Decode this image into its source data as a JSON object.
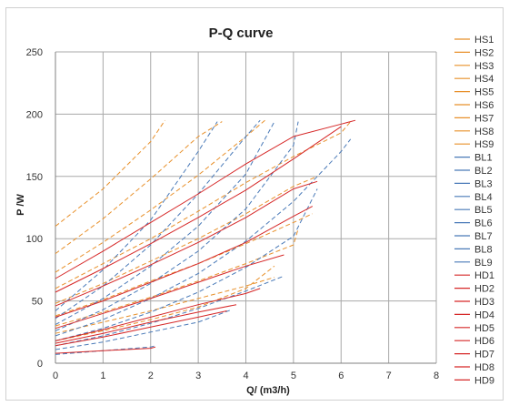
{
  "chart_data": {
    "type": "line",
    "title": "P-Q  curve",
    "xlabel": "Q/ (m3/h)",
    "ylabel": "P /W",
    "xlim": [
      0,
      8
    ],
    "ylim": [
      0,
      250
    ],
    "xticks": [
      "0",
      "1",
      "2",
      "3",
      "4",
      "5",
      "6",
      "7",
      "8"
    ],
    "yticks": [
      "0",
      "50",
      "100",
      "150",
      "200",
      "250"
    ],
    "grid": true,
    "legend_position": "right",
    "colors": {
      "HS": "#e8902a",
      "BL": "#4a7ab8",
      "HD": "#d62828",
      "grid": "#a8a8a8",
      "axis": "#808080"
    },
    "series": [
      {
        "name": "HS1",
        "group": "HS",
        "x": [
          0,
          1,
          2,
          2.3
        ],
        "y": [
          110,
          140,
          178,
          195
        ]
      },
      {
        "name": "HS2",
        "group": "HS",
        "x": [
          0,
          1,
          2,
          3,
          3.5
        ],
        "y": [
          88,
          116,
          148,
          182,
          194
        ]
      },
      {
        "name": "HS3",
        "group": "HS",
        "x": [
          0,
          1,
          2,
          3,
          4,
          4.4
        ],
        "y": [
          73,
          97,
          123,
          151,
          182,
          195
        ]
      },
      {
        "name": "HS4",
        "group": "HS",
        "x": [
          0,
          1,
          2,
          3,
          4,
          5,
          6,
          6.2
        ],
        "y": [
          60,
          80,
          100,
          122,
          145,
          166,
          185,
          194
        ]
      },
      {
        "name": "HS5",
        "group": "HS",
        "x": [
          0,
          1,
          2,
          3,
          4,
          5,
          5.5
        ],
        "y": [
          48,
          64,
          82,
          100,
          120,
          142,
          150
        ]
      },
      {
        "name": "HS6",
        "group": "HS",
        "x": [
          0,
          1,
          2,
          3,
          4,
          5,
          5.4
        ],
        "y": [
          38,
          51,
          66,
          80,
          96,
          113,
          120
        ]
      },
      {
        "name": "HS7",
        "group": "HS",
        "x": [
          0,
          1,
          2,
          3,
          4,
          5,
          5.1
        ],
        "y": [
          30,
          41,
          53,
          66,
          80,
          95,
          108
        ]
      },
      {
        "name": "HS8",
        "group": "HS",
        "x": [
          0,
          1,
          2,
          3,
          4,
          4.6
        ],
        "y": [
          24,
          33,
          42,
          52,
          62,
          69
        ]
      },
      {
        "name": "HS9",
        "group": "HS",
        "x": [
          0,
          1,
          2,
          3,
          4,
          4.6
        ],
        "y": [
          18,
          26,
          35,
          45,
          60,
          78
        ]
      },
      {
        "name": "BL1",
        "group": "BL",
        "x": [
          0,
          1,
          2,
          3,
          3.4
        ],
        "y": [
          42,
          75,
          115,
          170,
          194
        ]
      },
      {
        "name": "BL2",
        "group": "BL",
        "x": [
          0,
          1,
          2,
          3,
          4,
          4.3
        ],
        "y": [
          36,
          62,
          95,
          136,
          182,
          195
        ]
      },
      {
        "name": "BL3",
        "group": "BL",
        "x": [
          0,
          1,
          2,
          3,
          4,
          4.6
        ],
        "y": [
          31,
          52,
          78,
          110,
          152,
          194
        ]
      },
      {
        "name": "BL4",
        "group": "BL",
        "x": [
          0,
          1,
          2,
          3,
          4,
          5,
          5.1
        ],
        "y": [
          26,
          43,
          64,
          90,
          124,
          175,
          194
        ]
      },
      {
        "name": "BL5",
        "group": "BL",
        "x": [
          0,
          1,
          2,
          3,
          4,
          5,
          6,
          6.2
        ],
        "y": [
          22,
          35,
          52,
          72,
          98,
          130,
          170,
          180
        ]
      },
      {
        "name": "BL6",
        "group": "BL",
        "x": [
          0,
          1,
          2,
          3,
          4,
          5,
          5.5
        ],
        "y": [
          18,
          28,
          41,
          57,
          77,
          102,
          140
        ]
      },
      {
        "name": "BL7",
        "group": "BL",
        "x": [
          0,
          1,
          2,
          3,
          4,
          4.8
        ],
        "y": [
          14,
          22,
          32,
          44,
          58,
          70
        ]
      },
      {
        "name": "BL8",
        "group": "BL",
        "x": [
          0,
          1,
          2,
          3,
          3.7
        ],
        "y": [
          11,
          17,
          25,
          33,
          43
        ]
      },
      {
        "name": "BL9",
        "group": "BL",
        "x": [
          0,
          1,
          2,
          2.1
        ],
        "y": [
          7,
          10,
          13,
          14
        ]
      },
      {
        "name": "HD1",
        "group": "HD",
        "x": [
          0,
          1,
          2,
          3,
          4,
          5,
          6,
          6.3
        ],
        "y": [
          68,
          90,
          113,
          136,
          160,
          182,
          192,
          195
        ]
      },
      {
        "name": "HD2",
        "group": "HD",
        "x": [
          0,
          1,
          2,
          3,
          4,
          5,
          6
        ],
        "y": [
          57,
          76,
          96,
          117,
          139,
          164,
          190
        ]
      },
      {
        "name": "HD3",
        "group": "HD",
        "x": [
          0,
          1,
          2,
          3,
          4,
          5,
          5.5
        ],
        "y": [
          46,
          62,
          79,
          97,
          117,
          140,
          146
        ]
      },
      {
        "name": "HD4",
        "group": "HD",
        "x": [
          0,
          1,
          2,
          3,
          4,
          5,
          5.4
        ],
        "y": [
          37,
          50,
          65,
          80,
          97,
          118,
          126
        ]
      },
      {
        "name": "HD5",
        "group": "HD",
        "x": [
          0,
          1,
          2,
          3,
          4,
          4.8
        ],
        "y": [
          28,
          40,
          52,
          65,
          78,
          87
        ]
      },
      {
        "name": "HD6",
        "group": "HD",
        "x": [
          0,
          1,
          2,
          3,
          4,
          4.3
        ],
        "y": [
          18,
          27,
          37,
          47,
          56,
          60
        ]
      },
      {
        "name": "HD7",
        "group": "HD",
        "x": [
          0,
          1,
          2,
          3,
          3.8
        ],
        "y": [
          16,
          24,
          33,
          41,
          47
        ]
      },
      {
        "name": "HD8",
        "group": "HD",
        "x": [
          0,
          1,
          2,
          3,
          3.6
        ],
        "y": [
          14,
          21,
          29,
          37,
          42
        ]
      },
      {
        "name": "HD9",
        "group": "HD",
        "x": [
          0,
          1,
          2,
          2.1
        ],
        "y": [
          8,
          10,
          12,
          13
        ]
      }
    ]
  }
}
